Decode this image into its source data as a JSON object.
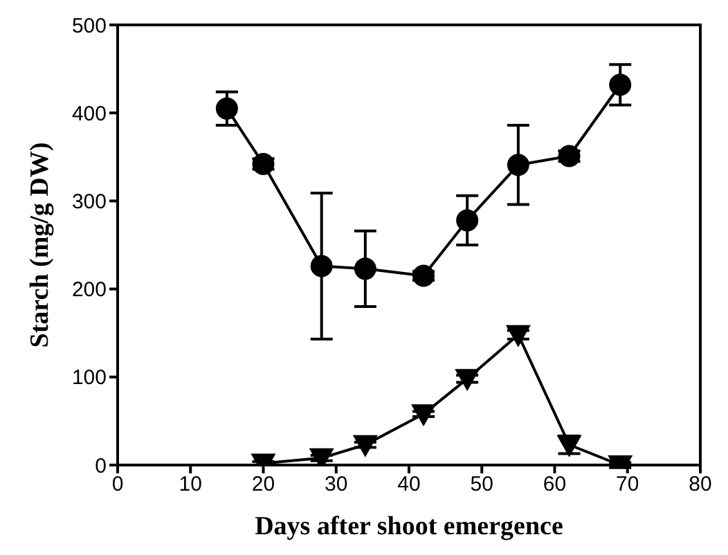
{
  "chart_data": {
    "type": "line",
    "xlabel": "Days after shoot emergence",
    "ylabel": "Starch (mg/g DW)",
    "xlim": [
      0,
      80
    ],
    "xticks": [
      0,
      10,
      20,
      30,
      40,
      50,
      60,
      70,
      80
    ],
    "ylim": [
      0,
      500
    ],
    "yticks": [
      0,
      100,
      200,
      300,
      400,
      500
    ],
    "line_style": "solid",
    "series": [
      {
        "color": "#000000",
        "marker": "circle",
        "x": [
          15,
          20,
          28,
          34,
          42,
          48,
          55,
          62,
          69
        ],
        "values": [
          405,
          342,
          226,
          223,
          215,
          278,
          341,
          351,
          432
        ],
        "errors": [
          19,
          6,
          83,
          43,
          5,
          28,
          45,
          6,
          23
        ]
      },
      {
        "color": "#000000",
        "marker": "triangle",
        "x": [
          20,
          28,
          34,
          42,
          48,
          55,
          62,
          69
        ],
        "values": [
          2,
          8,
          23,
          58,
          98,
          148,
          23,
          0
        ],
        "errors": [
          2,
          3,
          3,
          3,
          4,
          5,
          10,
          3
        ]
      }
    ]
  }
}
